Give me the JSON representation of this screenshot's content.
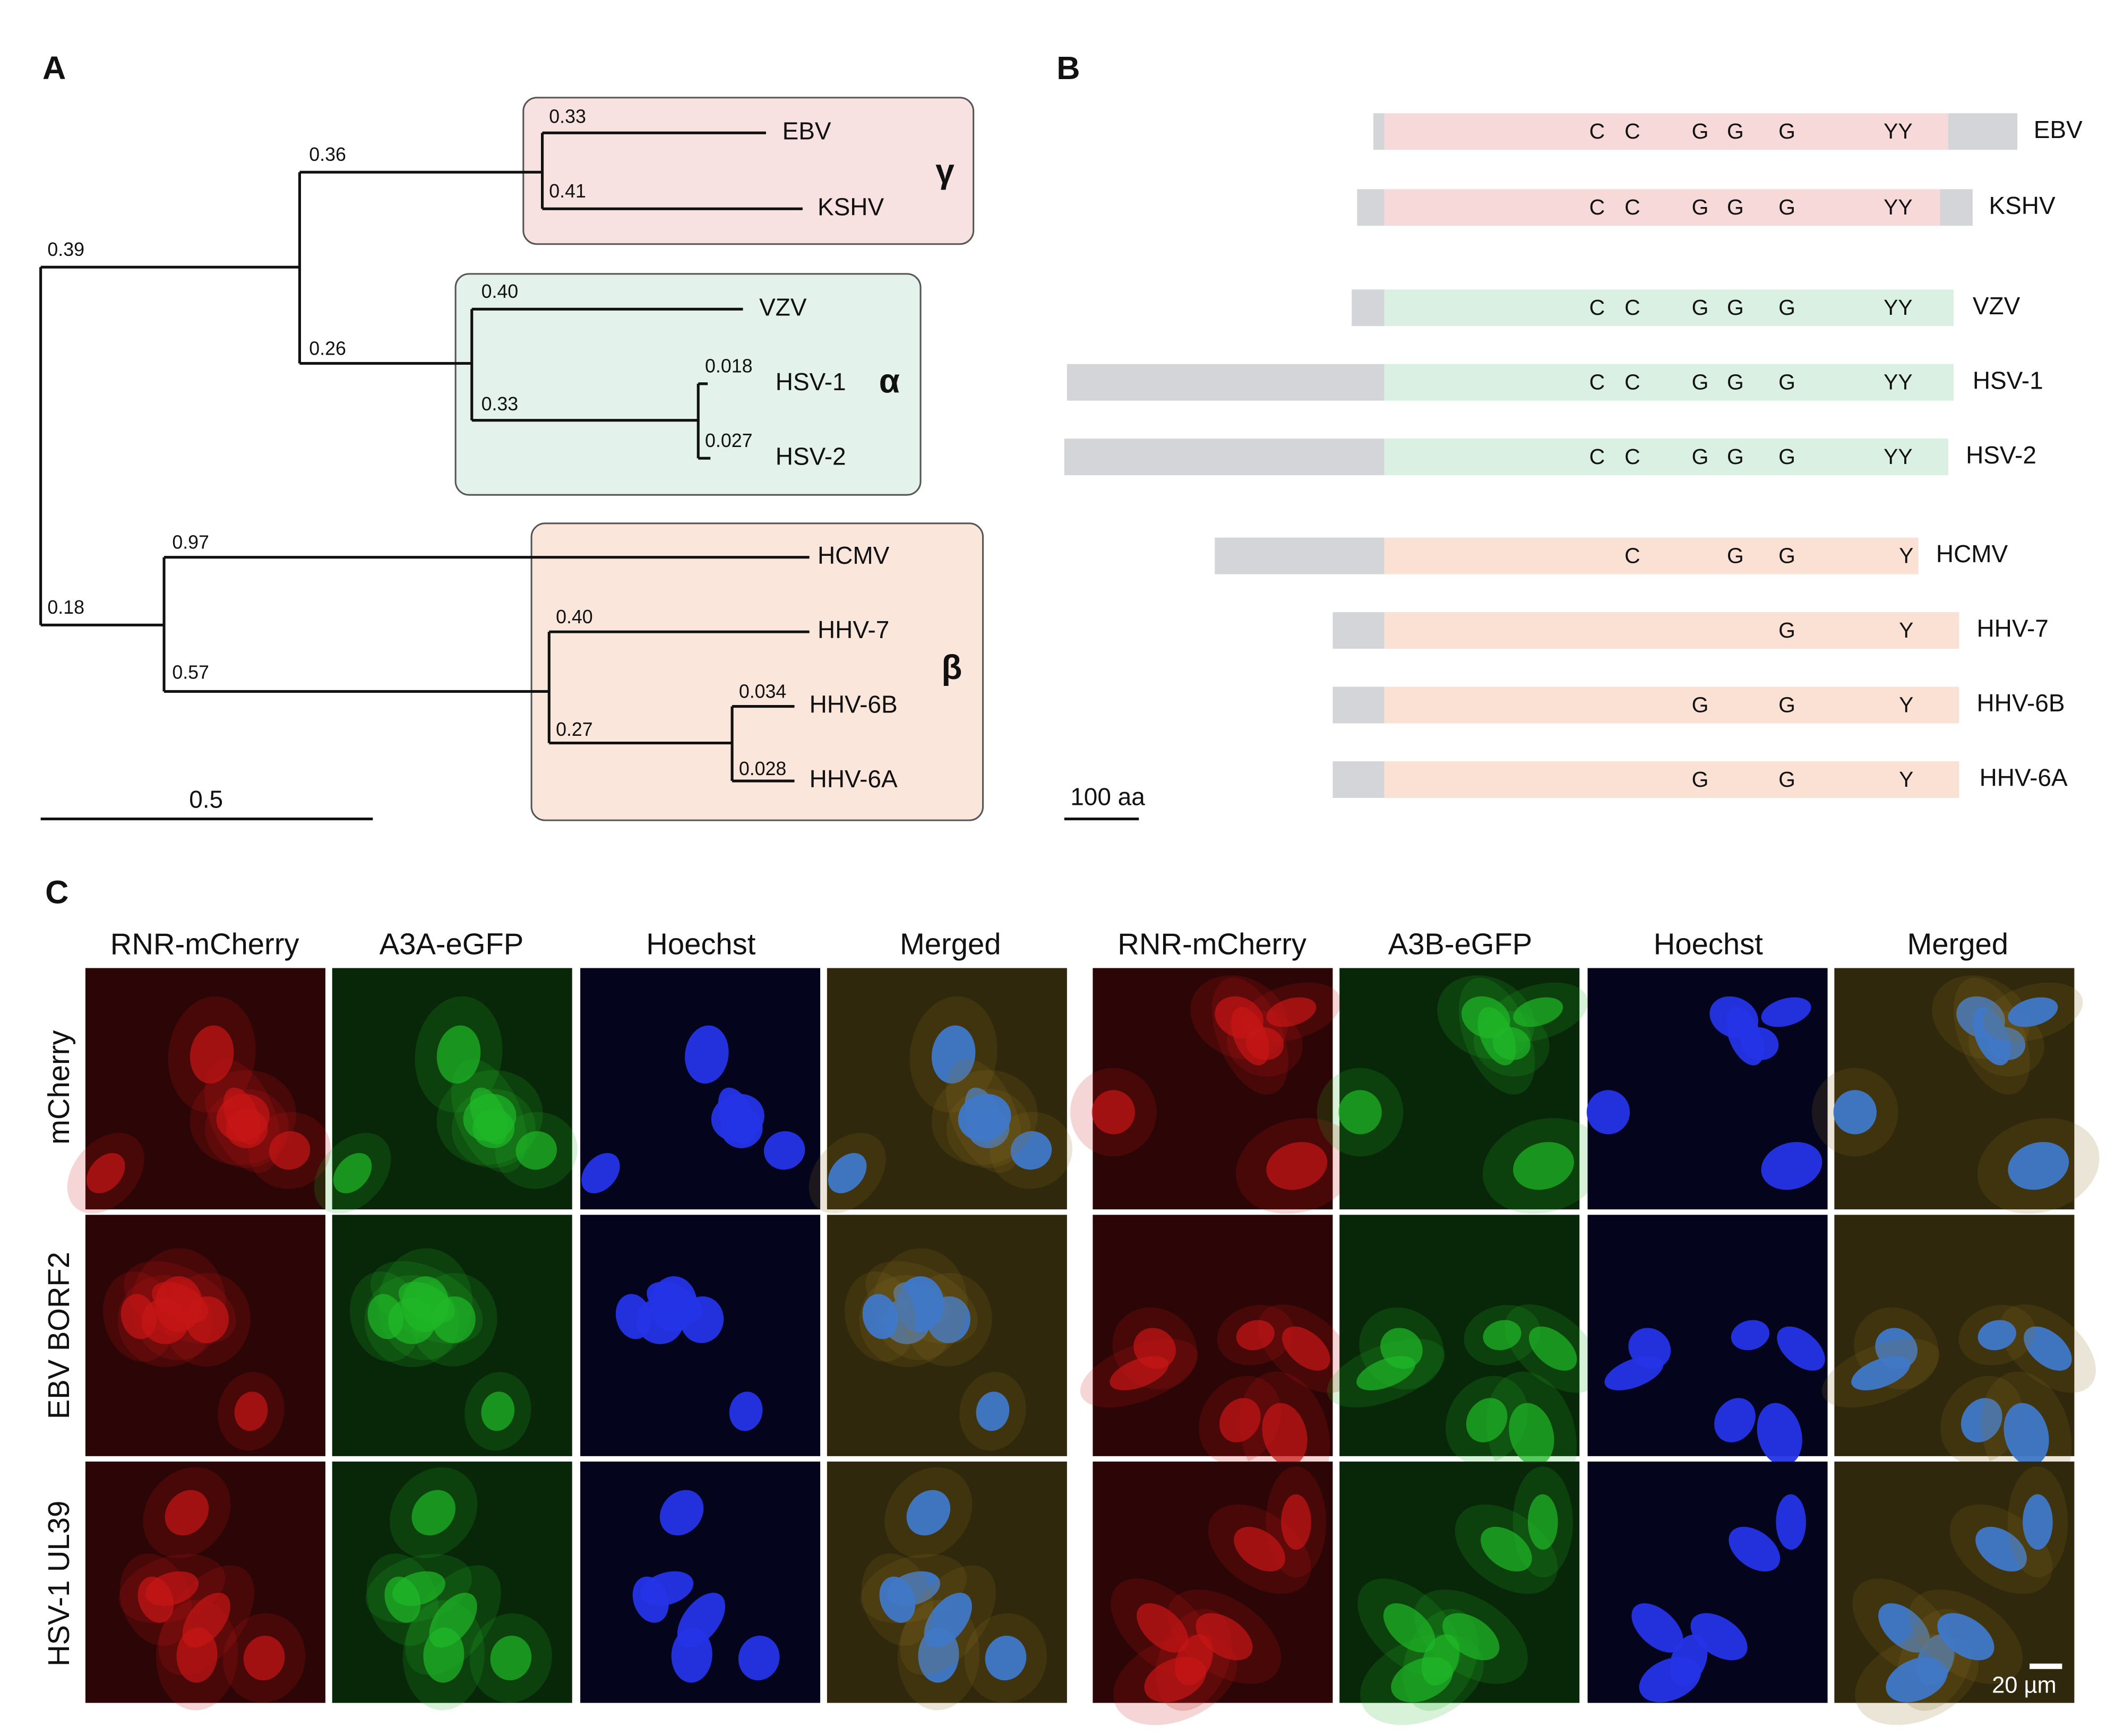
{
  "panels": {
    "a": "A",
    "b": "B",
    "c": "C"
  },
  "tree": {
    "leaves": [
      "EBV",
      "KSHV",
      "VZV",
      "HSV-1",
      "HSV-2",
      "HCMV",
      "HHV-7",
      "HHV-6B",
      "HHV-6A"
    ],
    "branch_labels": [
      "0.39",
      "0.36",
      "0.26",
      "0.33",
      "0.41",
      "0.40",
      "0.33",
      "0.018",
      "0.027",
      "0.18",
      "0.97",
      "0.57",
      "0.40",
      "0.27",
      "0.034",
      "0.028"
    ],
    "clades": [
      "γ",
      "α",
      "β"
    ],
    "scale_label": "0.5"
  },
  "domains": {
    "proteins": [
      {
        "name": "EBV",
        "residues": [
          "C",
          "C",
          "G",
          "G",
          "G",
          "YY"
        ]
      },
      {
        "name": "KSHV",
        "residues": [
          "C",
          "C",
          "G",
          "G",
          "G",
          "YY"
        ]
      },
      {
        "name": "VZV",
        "residues": [
          "C",
          "C",
          "G",
          "G",
          "G",
          "YY"
        ]
      },
      {
        "name": "HSV-1",
        "residues": [
          "C",
          "C",
          "G",
          "G",
          "G",
          "YY"
        ]
      },
      {
        "name": "HSV-2",
        "residues": [
          "C",
          "C",
          "G",
          "G",
          "G",
          "YY"
        ]
      },
      {
        "name": "HCMV",
        "residues": [
          "C",
          "G",
          "G",
          "Y"
        ]
      },
      {
        "name": "HHV-7",
        "residues": [
          "G",
          "Y"
        ]
      },
      {
        "name": "HHV-6B",
        "residues": [
          "G",
          "G",
          "Y"
        ]
      },
      {
        "name": "HHV-6A",
        "residues": [
          "G",
          "G",
          "Y"
        ]
      }
    ],
    "scale_label": "100 aa"
  },
  "microscopy": {
    "groups": [
      {
        "headers": [
          "RNR-mCherry",
          "A3A-eGFP",
          "Hoechst",
          "Merged"
        ]
      },
      {
        "headers": [
          "RNR-mCherry",
          "A3B-eGFP",
          "Hoechst",
          "Merged"
        ]
      }
    ],
    "rows": [
      "mCherry",
      "EBV BORF2",
      "HSV-1 UL39"
    ],
    "scale_label": "20 µm"
  }
}
